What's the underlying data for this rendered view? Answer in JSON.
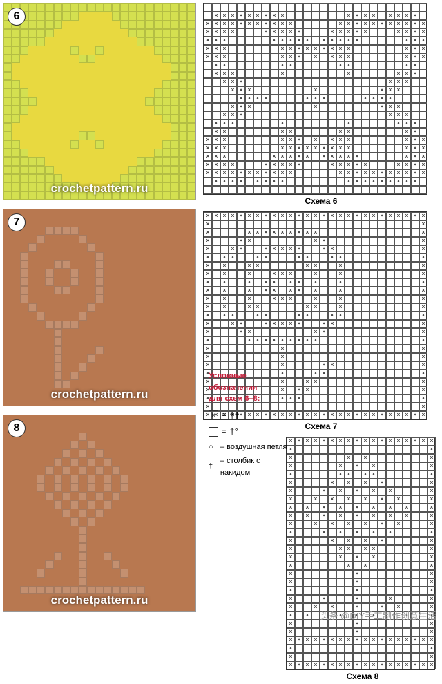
{
  "photos": [
    {
      "num": "6",
      "bg": "#d4e050",
      "fill": "#e8d940",
      "wm": "crochetpattern.ru",
      "grid": 23,
      "pattern": [
        "00000000000000000000000",
        "00000000011110000000000",
        "00000001111111000000000",
        "00000011111111100000000",
        "00000111111111110000000",
        "00011111011011111100000",
        "00111111100111111110000",
        "01111111111111111111000",
        "01111111111111111111000",
        "00111111111111111110000",
        "00011111111111111100000",
        "00001111111111111000000",
        "00011111111111111100000",
        "00111111111111111110000",
        "01111111111111111111000",
        "01111111100111111111000",
        "00111111011011111110000",
        "00011111111111111100000",
        "00000111111111110000000",
        "00000011111111100000000",
        "00000001111111000000000",
        "00000000011110000000000",
        "00000000000000000000000"
      ]
    },
    {
      "num": "7",
      "bg": "#c49070",
      "fill": "#b87850",
      "wm": "crochetpattern.ru",
      "grid": 23,
      "pattern": [
        "11111111111111111111111",
        "11111111111111111111111",
        "11111000011111111111111",
        "11110111101111111111111",
        "11101111110111111111111",
        "11011111111011111111111",
        "11011100111011111111111",
        "11011011011011111111111",
        "11011011011011111111111",
        "11011100111011111111111",
        "11011111111011111111111",
        "11101111110111111111111",
        "11110111101111111111111",
        "11111000011111111111111",
        "11111101111111111111111",
        "11111101111111111111111",
        "11111101111011111111111",
        "11111101110111111111111",
        "11111101101111111111111",
        "11111101011111111111111",
        "11111100111111111111111",
        "11111111111111111111111",
        "11111111111111111111111"
      ]
    },
    {
      "num": "8",
      "bg": "#c49070",
      "fill": "#b87850",
      "wm": "crochetpattern.ru",
      "grid": 23,
      "pattern": [
        "11111111111111111111111",
        "11111111111111111111111",
        "11111111101111111111111",
        "11111111010111111111111",
        "11111110101011111111111",
        "11111101010101111111111",
        "11111010101010111111111",
        "11110101010101011111111",
        "11110101010101011111111",
        "11111010101010111111111",
        "11111101010101111111111",
        "11111110101011111111111",
        "11111111010111111111111",
        "11111111101111111111111",
        "11111111101111111111111",
        "11111111101111111111111",
        "11111101101101111111111",
        "11111011101110111111111",
        "11110111101111011111111",
        "11111111101111111111111",
        "11000000000000000111111",
        "11111111111111111111111",
        "11111111111111111111111"
      ]
    }
  ],
  "charts": [
    {
      "caption": "Схема 6",
      "cols": 27,
      "rows": 23,
      "cell": 12,
      "rowsData": [
        "...........................",
        ".xxxxxxxxx.......xxxx.xxxx.",
        "xxxxxxxxxxx.....xxxxxxxxxxx",
        "xxxx...xxxxx...xxxxx...xxxx",
        "xxx.....xxxxx.xxxxx.....xxx",
        "xxx......xxxxxxxxx......xxx",
        "xxx......xxx.x.xxx......xxx",
        ".xx......xx.....xx......xx.",
        ".xxx.....x.......x.....xxx.",
        "..xxx.................xxx..",
        "...xxx.......x.......xxx...",
        "....xxxx....xxx....xxxx....",
        "...xxx.......x.......xxx...",
        "..xxx.................xxx..",
        ".xxx.....x.......x.....xxx.",
        ".xx......xx.....xx......xx.",
        "xxx......xxx.x.xxx......xxx",
        "xxx......xxxxxxxxx......xxx",
        "xxx.....xxxxx.xxxxx.....xxx",
        "xxxx...xxxxx...xxxxx...xxxx",
        "xxxxxxxxxxx.....xxxxxxxxxxx",
        ".xxxx.xxxx.......xxxxxxxxx.",
        "..........................."
      ]
    },
    {
      "caption": "Схема 7",
      "cols": 27,
      "rows": 25,
      "cell": 12,
      "rowsData": [
        "xxxxxxxxxxxxxxxxxxxxxxxxxxx",
        "x.........................x",
        "x....xxxxxxxxx............x",
        "x...xx.......xx...........x",
        "x..xx..xxxxx..xx..........x",
        "x.xx..xx...xx..xx.........x",
        "x.x..xx.....xx..x.........x",
        "x.x..x..xxx..x..x.........x",
        "x.x..x.xx.xx.x..x.........x",
        "x.x..x.xx.xx.x..x.........x",
        "x.x..x..xxx..x..x.........x",
        "x.x..xx.....xx..x.........x",
        "x.xx..xx...xx..xx.........x",
        "x..xx..xxxxx..xx..........x",
        "x...xx.......xx...........x",
        "x....xxxxxxxxx............x",
        "x........x................x",
        "x........x................x",
        "x........x....xx..........x",
        "x........x...xx...........x",
        "x........x..xx............x",
        "x........x.xx.............x",
        "x........xxx..............x",
        "x.........................x",
        "xxxxxxxxxxxxxxxxxxxxxxxxxxx"
      ]
    },
    {
      "caption": "Схема 8",
      "cols": 18,
      "rows": 28,
      "cell": 12,
      "offset": true,
      "rowsData": [
        "xxxxxxxxxxxxxxxxxx",
        "x................x",
        "x......x.x.......x",
        "x.....x.x.x......x",
        "x.....xx.xx......x",
        "x....x.x.x.x.....x",
        "x...x.x.x.x.x....x",
        "x..x.x.x.x.x.x...x",
        "x.x.x.x.x.x.x.x..x",
        "x.x.x.x.x.x.x.x..x",
        "x..x.x.x.x.x.x...x",
        "x...x.x.x.x.x....x",
        "x....x.x.x.x.....x",
        "x.....xx.xx......x",
        "x.....x.x.x......x",
        "x......x.x.......x",
        "x.......x........x",
        "x.......x........x",
        "x.......x........x",
        "x...x...x...x....x",
        "x..x.x..x..x.x...x",
        "x.x...x.x.x...x..x",
        "x.......x........x",
        "x.......x........x",
        "xxxxxxxxxxxxxxxxxx",
        "x................x",
        "x................x",
        "xxxxxxxxxxxxxxxxxx"
      ]
    }
  ],
  "legend": {
    "title": "Условные обозначения\nдля схем 6–8:",
    "rows": [
      {
        "sym": "×",
        "eq": "= ",
        "t": "††"
      },
      {
        "sym": "",
        "eq": "= ",
        "t": "†°"
      }
    ],
    "notes": [
      {
        "s": "○",
        "t": "– воздушная петля"
      },
      {
        "s": "†",
        "t": "– столбик с накидом"
      }
    ]
  },
  "footer": "头条 @DIY手工制作创意生活"
}
